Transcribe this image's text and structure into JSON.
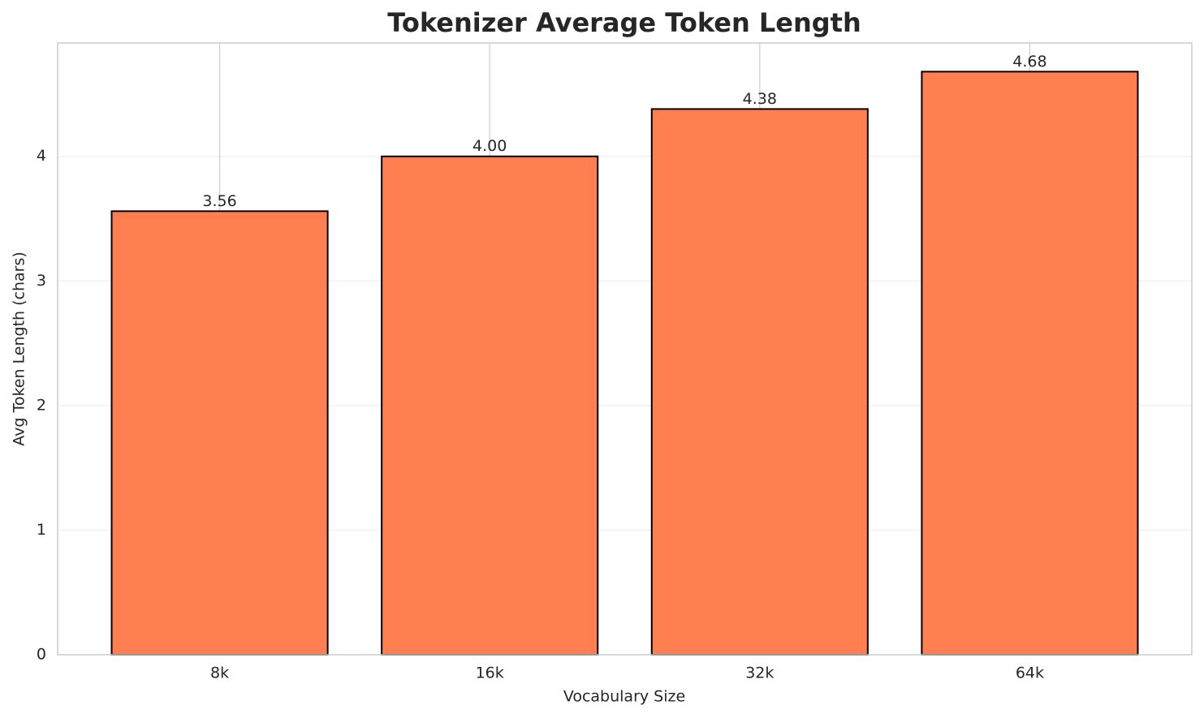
{
  "chart_data": {
    "type": "bar",
    "title": "Tokenizer Average Token Length",
    "xlabel": "Vocabulary Size",
    "ylabel": "Avg Token Length (chars)",
    "categories": [
      "8k",
      "16k",
      "32k",
      "64k"
    ],
    "values": [
      3.56,
      4.0,
      4.38,
      4.68
    ],
    "value_labels": [
      "3.56",
      "4.00",
      "4.38",
      "4.68"
    ],
    "color": "#ff7f50",
    "ylim": [
      0,
      4.91
    ],
    "yticks": [
      0,
      1,
      2,
      3,
      4
    ],
    "grid": true
  }
}
